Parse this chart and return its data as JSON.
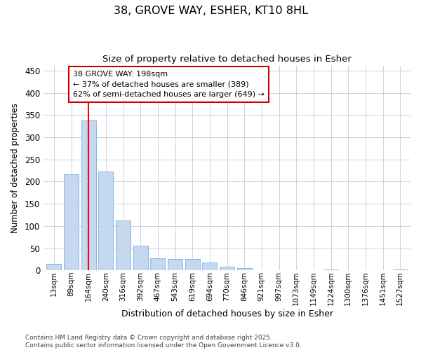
{
  "title1": "38, GROVE WAY, ESHER, KT10 8HL",
  "title2": "Size of property relative to detached houses in Esher",
  "xlabel": "Distribution of detached houses by size in Esher",
  "ylabel": "Number of detached properties",
  "categories": [
    "13sqm",
    "89sqm",
    "164sqm",
    "240sqm",
    "316sqm",
    "392sqm",
    "467sqm",
    "543sqm",
    "619sqm",
    "694sqm",
    "770sqm",
    "846sqm",
    "921sqm",
    "997sqm",
    "1073sqm",
    "1149sqm",
    "1224sqm",
    "1300sqm",
    "1376sqm",
    "1451sqm",
    "1527sqm"
  ],
  "values": [
    15,
    216,
    338,
    222,
    112,
    55,
    27,
    26,
    25,
    18,
    8,
    5,
    0,
    0,
    0,
    0,
    2,
    0,
    0,
    1,
    2
  ],
  "bar_color": "#c5d8f0",
  "bar_edge_color": "#7aafdc",
  "red_line_x": 2.0,
  "annotation_line1": "38 GROVE WAY: 198sqm",
  "annotation_line2": "← 37% of detached houses are smaller (389)",
  "annotation_line3": "62% of semi-detached houses are larger (649) →",
  "annotation_box_color": "#ffffff",
  "annotation_box_edge": "#cc0000",
  "footer1": "Contains HM Land Registry data © Crown copyright and database right 2025.",
  "footer2": "Contains public sector information licensed under the Open Government Licence v3.0.",
  "ylim": [
    0,
    460
  ],
  "yticks": [
    0,
    50,
    100,
    150,
    200,
    250,
    300,
    350,
    400,
    450
  ],
  "bg_color": "#ffffff",
  "grid_color": "#c8d4e0"
}
